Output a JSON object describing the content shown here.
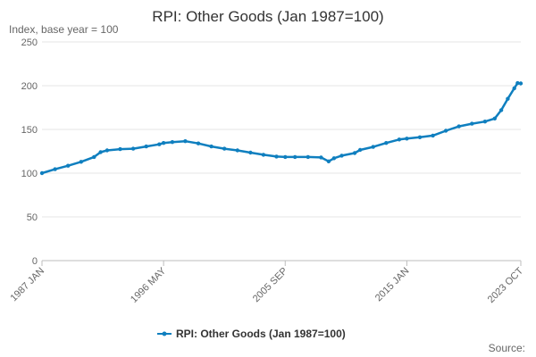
{
  "chart_data": {
    "type": "line",
    "title": "RPI: Other Goods (Jan 1987=100)",
    "ylabel": "Index, base year = 100",
    "xlabel": "",
    "ylim": [
      0,
      250
    ],
    "yticks": [
      0,
      50,
      100,
      150,
      200,
      250
    ],
    "x_range": [
      "1987-01",
      "2023-10"
    ],
    "xticks": [
      {
        "date": "1987-01",
        "label": "1987 JAN"
      },
      {
        "date": "1996-05",
        "label": "1996 MAY"
      },
      {
        "date": "2005-09",
        "label": "2005 SEP"
      },
      {
        "date": "2015-01",
        "label": "2015 JAN"
      },
      {
        "date": "2023-10",
        "label": "2023 OCT"
      }
    ],
    "grid": "horizontal",
    "legend_position": "bottom",
    "series": [
      {
        "name": "RPI: Other Goods (Jan 1987=100)",
        "color": "#0f7fbf",
        "marker": "circle",
        "points": [
          [
            "1987-01",
            100.0
          ],
          [
            "1988-01",
            104.5
          ],
          [
            "1989-01",
            108.5
          ],
          [
            "1990-01",
            113.0
          ],
          [
            "1991-01",
            118.5
          ],
          [
            "1991-07",
            124.0
          ],
          [
            "1992-01",
            126.0
          ],
          [
            "1993-01",
            127.5
          ],
          [
            "1994-01",
            128.0
          ],
          [
            "1995-01",
            130.5
          ],
          [
            "1996-01",
            133.0
          ],
          [
            "1996-05",
            134.5
          ],
          [
            "1997-01",
            135.5
          ],
          [
            "1998-01",
            136.5
          ],
          [
            "1999-01",
            134.0
          ],
          [
            "2000-01",
            130.5
          ],
          [
            "2001-01",
            128.0
          ],
          [
            "2002-01",
            126.0
          ],
          [
            "2003-01",
            123.5
          ],
          [
            "2004-01",
            121.0
          ],
          [
            "2005-01",
            119.0
          ],
          [
            "2005-09",
            118.5
          ],
          [
            "2006-06",
            118.5
          ],
          [
            "2007-06",
            118.5
          ],
          [
            "2008-06",
            118.0
          ],
          [
            "2009-01",
            113.5
          ],
          [
            "2009-06",
            117.0
          ],
          [
            "2010-01",
            120.0
          ],
          [
            "2011-01",
            123.0
          ],
          [
            "2011-06",
            126.5
          ],
          [
            "2012-06",
            130.0
          ],
          [
            "2013-06",
            134.5
          ],
          [
            "2014-06",
            138.5
          ],
          [
            "2015-01",
            139.5
          ],
          [
            "2016-01",
            141.0
          ],
          [
            "2017-01",
            143.0
          ],
          [
            "2018-01",
            148.5
          ],
          [
            "2019-01",
            153.5
          ],
          [
            "2020-01",
            156.5
          ],
          [
            "2021-01",
            159.0
          ],
          [
            "2021-10",
            162.5
          ],
          [
            "2022-04",
            172.0
          ],
          [
            "2022-10",
            185.0
          ],
          [
            "2023-04",
            197.0
          ],
          [
            "2023-07",
            203.0
          ],
          [
            "2023-10",
            202.5
          ]
        ]
      }
    ],
    "source_text": "Source:"
  }
}
